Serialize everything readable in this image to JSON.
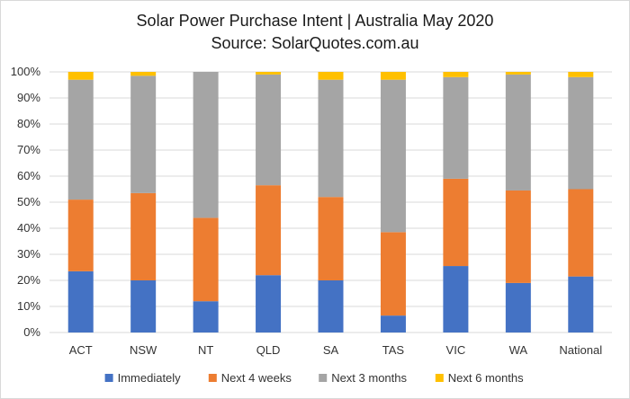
{
  "chart_data": {
    "type": "bar",
    "stacked": true,
    "title": "Solar Power Purchase Intent | Australia May 2020",
    "subtitle": "Source: SolarQuotes.com.au",
    "xlabel": "",
    "ylabel": "",
    "ylim": [
      0,
      100
    ],
    "yticks": [
      "0%",
      "10%",
      "20%",
      "30%",
      "40%",
      "50%",
      "60%",
      "70%",
      "80%",
      "90%",
      "100%"
    ],
    "grid": true,
    "legend_position": "bottom",
    "categories": [
      "ACT",
      "NSW",
      "NT",
      "QLD",
      "SA",
      "TAS",
      "VIC",
      "WA",
      "National"
    ],
    "series": [
      {
        "name": "Immediately",
        "color": "#4472C4",
        "values": [
          23.5,
          20,
          12,
          22,
          20,
          6.5,
          25.5,
          19,
          21.5
        ]
      },
      {
        "name": "Next 4 weeks",
        "color": "#ED7D31",
        "values": [
          27.5,
          33.5,
          32,
          34.5,
          32,
          32,
          33.5,
          35.5,
          33.5
        ]
      },
      {
        "name": "Next 3 months",
        "color": "#A5A5A5",
        "values": [
          46,
          45,
          56,
          42.5,
          45,
          58.5,
          39,
          44.5,
          43
        ]
      },
      {
        "name": "Next 6 months",
        "color": "#FFC000",
        "values": [
          3,
          1.5,
          0,
          1,
          3,
          3,
          2,
          1,
          2
        ]
      }
    ]
  }
}
